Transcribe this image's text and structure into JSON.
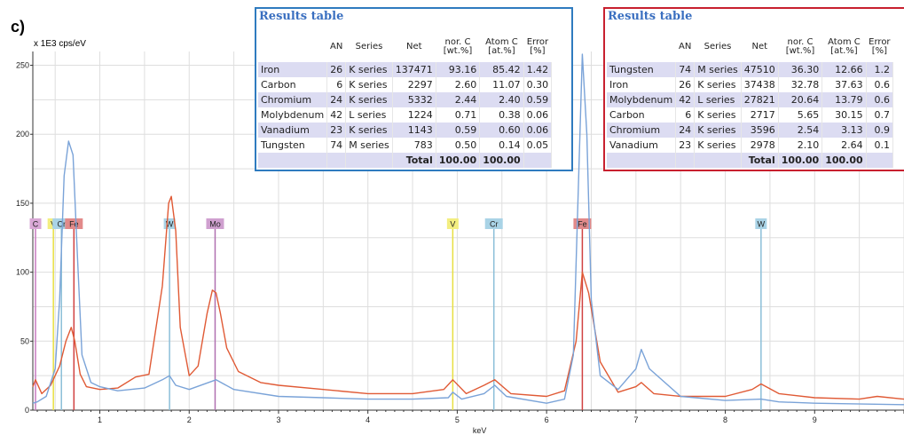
{
  "panel_label": "c)",
  "y_unit": "x 1E3 cps/eV",
  "chart_data": {
    "type": "line",
    "xlabel": "keV",
    "ylabel": "x 1E3 cps/eV",
    "xlim": [
      0.25,
      10.0
    ],
    "ylim": [
      0,
      260
    ],
    "x_ticks": [
      1,
      2,
      3,
      4,
      5,
      6,
      7,
      8,
      9
    ],
    "y_ticks": [
      0,
      50,
      100,
      150,
      200,
      250
    ],
    "grid": true,
    "series": [
      {
        "color": "#e05a35",
        "x": [
          0.25,
          0.28,
          0.35,
          0.45,
          0.55,
          0.62,
          0.68,
          0.72,
          0.78,
          0.85,
          1.0,
          1.2,
          1.4,
          1.55,
          1.7,
          1.77,
          1.8,
          1.85,
          1.9,
          2.0,
          2.1,
          2.2,
          2.26,
          2.3,
          2.35,
          2.42,
          2.55,
          2.8,
          3.0,
          3.5,
          4.0,
          4.5,
          4.85,
          4.95,
          5.1,
          5.3,
          5.42,
          5.6,
          6.0,
          6.2,
          6.33,
          6.4,
          6.47,
          6.6,
          6.8,
          7.0,
          7.06,
          7.2,
          7.5,
          8.0,
          8.3,
          8.4,
          8.6,
          9.0,
          9.5,
          9.7,
          10.0
        ],
        "y": [
          17,
          22,
          12,
          18,
          32,
          50,
          60,
          50,
          26,
          17,
          15,
          16,
          24,
          26,
          90,
          150,
          155,
          130,
          60,
          25,
          32,
          70,
          87,
          85,
          70,
          45,
          28,
          20,
          18,
          15,
          12,
          12,
          15,
          22,
          12,
          18,
          22,
          12,
          10,
          14,
          50,
          100,
          85,
          35,
          13,
          17,
          20,
          12,
          10,
          10,
          15,
          19,
          12,
          9,
          8,
          10,
          8
        ]
      },
      {
        "color": "#7aa3d8",
        "x": [
          0.25,
          0.3,
          0.4,
          0.5,
          0.55,
          0.6,
          0.65,
          0.7,
          0.75,
          0.8,
          0.9,
          1.0,
          1.2,
          1.5,
          1.7,
          1.78,
          1.85,
          2.0,
          2.3,
          2.5,
          3.0,
          3.5,
          4.0,
          4.5,
          4.9,
          4.95,
          5.05,
          5.3,
          5.42,
          5.55,
          6.0,
          6.2,
          6.3,
          6.35,
          6.4,
          6.45,
          6.5,
          6.6,
          6.8,
          7.0,
          7.06,
          7.15,
          7.5,
          8.0,
          8.4,
          8.6,
          9.0,
          10.0
        ],
        "y": [
          5,
          6,
          10,
          30,
          80,
          170,
          195,
          185,
          110,
          40,
          20,
          17,
          14,
          16,
          22,
          25,
          18,
          15,
          22,
          15,
          10,
          9,
          8,
          8,
          9,
          13,
          8,
          12,
          18,
          10,
          5,
          8,
          40,
          150,
          258,
          200,
          80,
          25,
          15,
          30,
          44,
          30,
          10,
          7,
          8,
          6,
          5,
          4
        ]
      }
    ],
    "element_markers": [
      {
        "label": "C",
        "x": 0.28,
        "color": "#c77ac0",
        "flag": "#d9a8d6"
      },
      {
        "label": "V",
        "x": 0.48,
        "color": "#e8df40",
        "flag": "#f3ee80"
      },
      {
        "label": "Cr",
        "x": 0.57,
        "color": "#8bbfd8",
        "flag": "#a9d3e6"
      },
      {
        "label": "Fe",
        "x": 0.71,
        "color": "#d04040",
        "flag": "#e28a8a"
      },
      {
        "label": "W",
        "x": 1.78,
        "color": "#8bbfd8",
        "flag": "#a9d3e6"
      },
      {
        "label": "Mo",
        "x": 2.29,
        "color": "#b070b0",
        "flag": "#cfa0cf"
      },
      {
        "label": "V",
        "x": 4.95,
        "color": "#e8df40",
        "flag": "#f3ee80"
      },
      {
        "label": "Cr",
        "x": 5.41,
        "color": "#8bbfd8",
        "flag": "#a9d3e6"
      },
      {
        "label": "Fe",
        "x": 6.4,
        "color": "#d04040",
        "flag": "#e28a8a"
      },
      {
        "label": "W",
        "x": 8.4,
        "color": "#8bbfd8",
        "flag": "#a9d3e6"
      }
    ]
  },
  "tables": [
    {
      "title": "Results table",
      "headers": [
        "",
        "AN",
        "Series",
        "Net",
        "nor. C\n[wt.%]",
        "Atom C\n[at.%]",
        "Error\n[%]"
      ],
      "rows": [
        [
          "Iron",
          "26",
          "K series",
          "137471",
          "93.16",
          "85.42",
          "1.42"
        ],
        [
          "Carbon",
          "6",
          "K series",
          "2297",
          "2.60",
          "11.07",
          "0.30"
        ],
        [
          "Chromium",
          "24",
          "K series",
          "5332",
          "2.44",
          "2.40",
          "0.59"
        ],
        [
          "Molybdenum",
          "42",
          "L series",
          "1224",
          "0.71",
          "0.38",
          "0.06"
        ],
        [
          "Vanadium",
          "23",
          "K series",
          "1143",
          "0.59",
          "0.60",
          "0.06"
        ],
        [
          "Tungsten",
          "74",
          "M series",
          "783",
          "0.50",
          "0.14",
          "0.05"
        ]
      ],
      "total": [
        "",
        "",
        "",
        "Total",
        "100.00",
        "100.00",
        ""
      ]
    },
    {
      "title": "Results table",
      "headers": [
        "",
        "AN",
        "Series",
        "Net",
        "nor. C\n[wt.%]",
        "Atom C\n[at.%]",
        "Error\n[%]"
      ],
      "rows": [
        [
          "Tungsten",
          "74",
          "M series",
          "47510",
          "36.30",
          "12.66",
          "1.2"
        ],
        [
          "Iron",
          "26",
          "K series",
          "37438",
          "32.78",
          "37.63",
          "0.6"
        ],
        [
          "Molybdenum",
          "42",
          "L series",
          "27821",
          "20.64",
          "13.79",
          "0.6"
        ],
        [
          "Carbon",
          "6",
          "K series",
          "2717",
          "5.65",
          "30.15",
          "0.7"
        ],
        [
          "Chromium",
          "24",
          "K series",
          "3596",
          "2.54",
          "3.13",
          "0.9"
        ],
        [
          "Vanadium",
          "23",
          "K series",
          "2978",
          "2.10",
          "2.64",
          "0.1"
        ]
      ],
      "total": [
        "",
        "",
        "",
        "Total",
        "100.00",
        "100.00",
        ""
      ]
    }
  ]
}
